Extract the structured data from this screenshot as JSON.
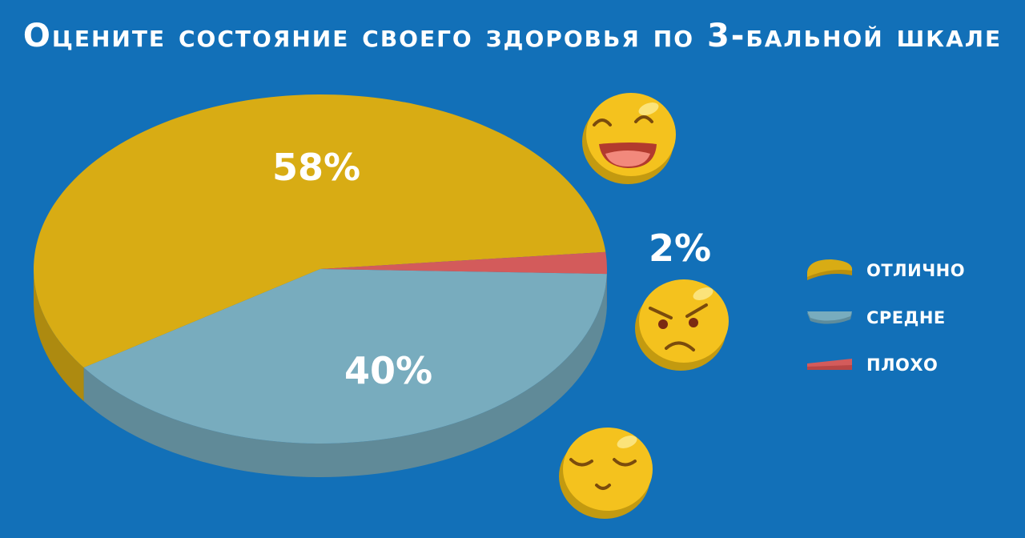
{
  "title": "Оцените состояние своего здоровья по 3-бальной шкале",
  "chart_data": {
    "type": "pie",
    "title": "Оцените состояние своего здоровья по 3-бальной шкале",
    "categories": [
      "ОТЛИЧНО",
      "СРЕДНЕ",
      "ПЛОХО"
    ],
    "values": [
      58,
      40,
      2
    ],
    "labels": [
      "58%",
      "40%",
      "2%"
    ],
    "colors": [
      "#d8ac14",
      "#78acbe",
      "#d35b5b"
    ],
    "legend_position": "right"
  },
  "icons": [
    "laughing-emoji-icon",
    "angry-emoji-icon",
    "calm-emoji-icon"
  ]
}
